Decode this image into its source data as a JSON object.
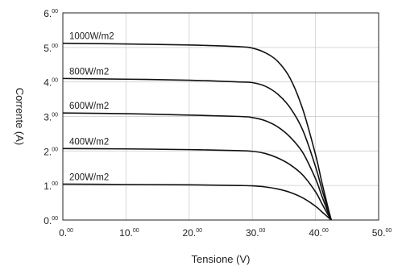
{
  "chart_data": {
    "type": "line",
    "title": "",
    "xlabel": "Tensione (V)",
    "ylabel": "Corrente (A)",
    "xlim": [
      0,
      50
    ],
    "ylim": [
      0,
      6
    ],
    "grid": true,
    "x_ticks": [
      0,
      10,
      20,
      30,
      40,
      50
    ],
    "y_ticks": [
      0,
      1,
      2,
      3,
      4,
      5,
      6
    ],
    "x_tick_labels": [
      {
        "main": "0.",
        "sup": "00"
      },
      {
        "main": "10.",
        "sup": "00"
      },
      {
        "main": "20.",
        "sup": "00"
      },
      {
        "main": "30.",
        "sup": "00"
      },
      {
        "main": "40.",
        "sup": "00"
      },
      {
        "main": "50.",
        "sup": "00"
      }
    ],
    "y_tick_labels": [
      {
        "main": "0.",
        "sup": "00"
      },
      {
        "main": "1.",
        "sup": "00"
      },
      {
        "main": "2.",
        "sup": "00"
      },
      {
        "main": "3.",
        "sup": "00"
      },
      {
        "main": "4.",
        "sup": "00"
      },
      {
        "main": "5.",
        "sup": "00"
      },
      {
        "main": "6.",
        "sup": "00"
      }
    ],
    "series": [
      {
        "name": "1000W/m2",
        "isc": 5.12,
        "points": [
          [
            0,
            5.12
          ],
          [
            10,
            5.1
          ],
          [
            20,
            5.07
          ],
          [
            28,
            5.02
          ],
          [
            30,
            4.98
          ],
          [
            32,
            4.85
          ],
          [
            34,
            4.6
          ],
          [
            36,
            4.1
          ],
          [
            38,
            3.2
          ],
          [
            40,
            1.9
          ],
          [
            41,
            1.1
          ],
          [
            42,
            0.35
          ],
          [
            42.5,
            0
          ]
        ]
      },
      {
        "name": "800W/m2",
        "isc": 4.1,
        "points": [
          [
            0,
            4.1
          ],
          [
            10,
            4.08
          ],
          [
            20,
            4.05
          ],
          [
            28,
            4.0
          ],
          [
            30,
            3.98
          ],
          [
            32,
            3.88
          ],
          [
            34,
            3.65
          ],
          [
            36,
            3.25
          ],
          [
            38,
            2.6
          ],
          [
            40,
            1.55
          ],
          [
            41,
            0.9
          ],
          [
            42,
            0.3
          ],
          [
            42.5,
            0
          ]
        ]
      },
      {
        "name": "600W/m2",
        "isc": 3.1,
        "points": [
          [
            0,
            3.1
          ],
          [
            10,
            3.08
          ],
          [
            20,
            3.04
          ],
          [
            28,
            3.0
          ],
          [
            30,
            2.97
          ],
          [
            32,
            2.88
          ],
          [
            34,
            2.7
          ],
          [
            36,
            2.4
          ],
          [
            38,
            1.95
          ],
          [
            40,
            1.2
          ],
          [
            41,
            0.7
          ],
          [
            42,
            0.22
          ],
          [
            42.5,
            0
          ]
        ]
      },
      {
        "name": "400W/m2",
        "isc": 2.07,
        "points": [
          [
            0,
            2.07
          ],
          [
            10,
            2.06
          ],
          [
            20,
            2.04
          ],
          [
            28,
            2.01
          ],
          [
            30,
            1.99
          ],
          [
            32,
            1.93
          ],
          [
            34,
            1.8
          ],
          [
            36,
            1.6
          ],
          [
            38,
            1.3
          ],
          [
            40,
            0.82
          ],
          [
            41,
            0.48
          ],
          [
            42,
            0.15
          ],
          [
            42.5,
            0
          ]
        ]
      },
      {
        "name": "200W/m2",
        "isc": 1.04,
        "points": [
          [
            0,
            1.04
          ],
          [
            10,
            1.03
          ],
          [
            20,
            1.02
          ],
          [
            28,
            1.0
          ],
          [
            30,
            0.99
          ],
          [
            32,
            0.96
          ],
          [
            34,
            0.9
          ],
          [
            36,
            0.8
          ],
          [
            38,
            0.64
          ],
          [
            40,
            0.4
          ],
          [
            41,
            0.24
          ],
          [
            42,
            0.08
          ],
          [
            42.5,
            0
          ]
        ]
      }
    ]
  }
}
